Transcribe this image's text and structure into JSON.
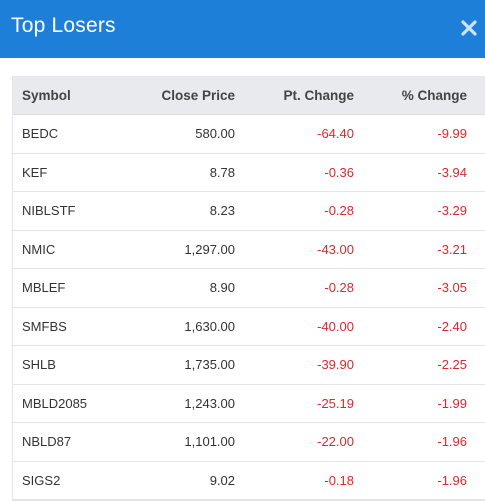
{
  "dialog": {
    "title": "Top Losers"
  },
  "table": {
    "headers": {
      "symbol": "Symbol",
      "close_price": "Close Price",
      "pt_change": "Pt. Change",
      "pct_change": "% Change"
    },
    "rows": [
      {
        "symbol": "BEDC",
        "close_price": "580.00",
        "pt_change": "-64.40",
        "pct_change": "-9.99"
      },
      {
        "symbol": "KEF",
        "close_price": "8.78",
        "pt_change": "-0.36",
        "pct_change": "-3.94"
      },
      {
        "symbol": "NIBLSTF",
        "close_price": "8.23",
        "pt_change": "-0.28",
        "pct_change": "-3.29"
      },
      {
        "symbol": "NMIC",
        "close_price": "1,297.00",
        "pt_change": "-43.00",
        "pct_change": "-3.21"
      },
      {
        "symbol": "MBLEF",
        "close_price": "8.90",
        "pt_change": "-0.28",
        "pct_change": "-3.05"
      },
      {
        "symbol": "SMFBS",
        "close_price": "1,630.00",
        "pt_change": "-40.00",
        "pct_change": "-2.40"
      },
      {
        "symbol": "SHLB",
        "close_price": "1,735.00",
        "pt_change": "-39.90",
        "pct_change": "-2.25"
      },
      {
        "symbol": "MBLD2085",
        "close_price": "1,243.00",
        "pt_change": "-25.19",
        "pct_change": "-1.99"
      },
      {
        "symbol": "NBLD87",
        "close_price": "1,101.00",
        "pt_change": "-22.00",
        "pct_change": "-1.96"
      },
      {
        "symbol": "SIGS2",
        "close_price": "9.02",
        "pt_change": "-0.18",
        "pct_change": "-1.96"
      }
    ]
  },
  "icons": {
    "close": "close-icon"
  },
  "colors": {
    "header_bg": "#1e7fd9",
    "negative": "#e0262c",
    "table_header_bg": "#e8eaee"
  }
}
